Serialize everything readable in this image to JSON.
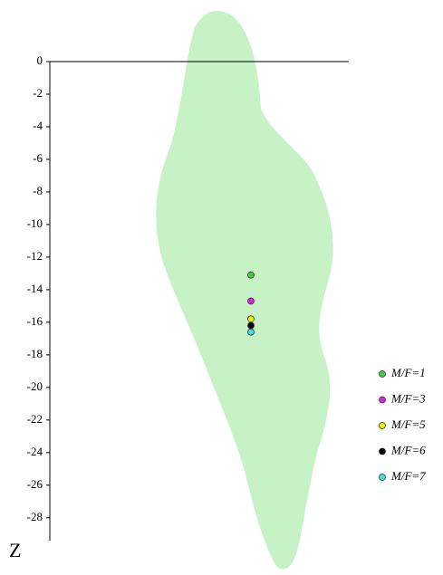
{
  "chart_data": {
    "type": "scatter",
    "y_label": "Z",
    "ylim": [
      -29.4,
      0
    ],
    "yticks": [
      0,
      -2,
      -4,
      -6,
      -8,
      -10,
      -12,
      -14,
      -16,
      -18,
      -20,
      -22,
      -24,
      -26,
      -28
    ],
    "series": [
      {
        "name": "M/F=1",
        "color": "#3ad23a",
        "values": [
          -13.1
        ]
      },
      {
        "name": "M/F=3",
        "color": "#e020e0",
        "values": [
          -14.7
        ]
      },
      {
        "name": "M/F=5",
        "color": "#f2f200",
        "values": [
          -15.8
        ]
      },
      {
        "name": "M/F=6",
        "color": "#000000",
        "values": [
          -16.2
        ]
      },
      {
        "name": "M/F=7",
        "color": "#40dede",
        "values": [
          -16.6
        ]
      }
    ],
    "legend": "right"
  }
}
